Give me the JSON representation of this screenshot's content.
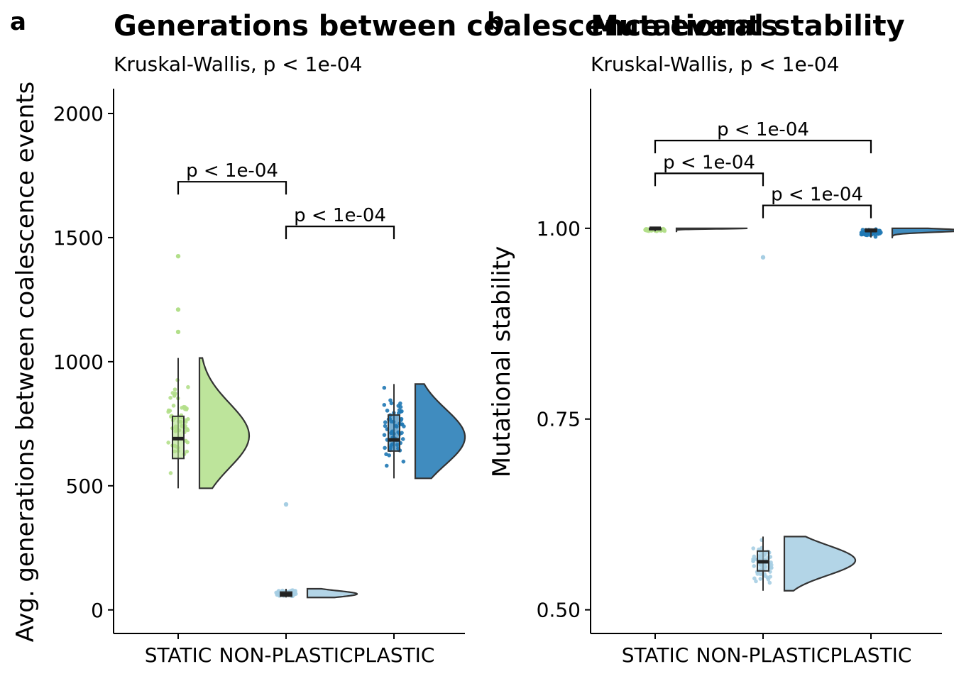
{
  "colors": {
    "STATIC": "#b2df8a",
    "NON-PLASTIC": "#a6cee3",
    "PLASTIC": "#1f78b4"
  },
  "chart_data": [
    {
      "type": "raincloud",
      "panel_tag": "a",
      "title": "Generations between coalescence events",
      "subtitle": "Kruskal-Wallis, p < 1e-04",
      "xlabel": "",
      "ylabel": "Avg. generations between coalescence events",
      "categories": [
        "STATIC",
        "NON-PLASTIC",
        "PLASTIC"
      ],
      "ylim": [
        -95,
        2100
      ],
      "yticks": [
        0,
        500,
        1000,
        1500,
        2000
      ],
      "ytick_labels": [
        "0",
        "500",
        "1000",
        "1500",
        "2000"
      ],
      "boxes": [
        {
          "category": "STATIC",
          "min": 490,
          "q1": 610,
          "median": 690,
          "q3": 780,
          "max": 1015
        },
        {
          "category": "NON-PLASTIC",
          "min": 50,
          "q1": 55,
          "median": 63,
          "q3": 72,
          "max": 85
        },
        {
          "category": "PLASTIC",
          "min": 530,
          "q1": 640,
          "median": 685,
          "q3": 785,
          "max": 910
        }
      ],
      "outliers": [
        {
          "category": "STATIC",
          "y": 1425
        },
        {
          "category": "STATIC",
          "y": 1210
        },
        {
          "category": "STATIC",
          "y": 1120
        },
        {
          "category": "NON-PLASTIC",
          "y": 425
        }
      ],
      "comparisons": [
        {
          "from": "STATIC",
          "to": "NON-PLASTIC",
          "y": 1725,
          "label": "p < 1e-04"
        },
        {
          "from": "NON-PLASTIC",
          "to": "PLASTIC",
          "y": 1545,
          "label": "p < 1e-04"
        }
      ]
    },
    {
      "type": "raincloud",
      "panel_tag": "b",
      "title": "Mutational stability",
      "subtitle": "Kruskal-Wallis, p < 1e-04",
      "xlabel": "",
      "ylabel": "Mutational stability",
      "categories": [
        "STATIC",
        "NON-PLASTIC",
        "PLASTIC"
      ],
      "ylim": [
        0.469,
        1.183
      ],
      "yticks": [
        0.5,
        0.75,
        1.0
      ],
      "ytick_labels": [
        "0.50",
        "0.75",
        "1.00"
      ],
      "boxes": [
        {
          "category": "STATIC",
          "min": 0.996,
          "q1": 0.999,
          "median": 1.0,
          "q3": 1.0,
          "max": 1.0
        },
        {
          "category": "NON-PLASTIC",
          "min": 0.525,
          "q1": 0.551,
          "median": 0.563,
          "q3": 0.577,
          "max": 0.596
        },
        {
          "category": "PLASTIC",
          "min": 0.988,
          "q1": 0.996,
          "median": 0.997,
          "q3": 0.999,
          "max": 1.0
        }
      ],
      "outliers": [
        {
          "category": "NON-PLASTIC",
          "y": 0.962
        }
      ],
      "comparisons": [
        {
          "from": "STATIC",
          "to": "PLASTIC",
          "y": 1.115,
          "label": "p < 1e-04"
        },
        {
          "from": "STATIC",
          "to": "NON-PLASTIC",
          "y": 1.072,
          "label": "p < 1e-04"
        },
        {
          "from": "NON-PLASTIC",
          "to": "PLASTIC",
          "y": 1.03,
          "label": "p < 1e-04"
        }
      ]
    }
  ]
}
